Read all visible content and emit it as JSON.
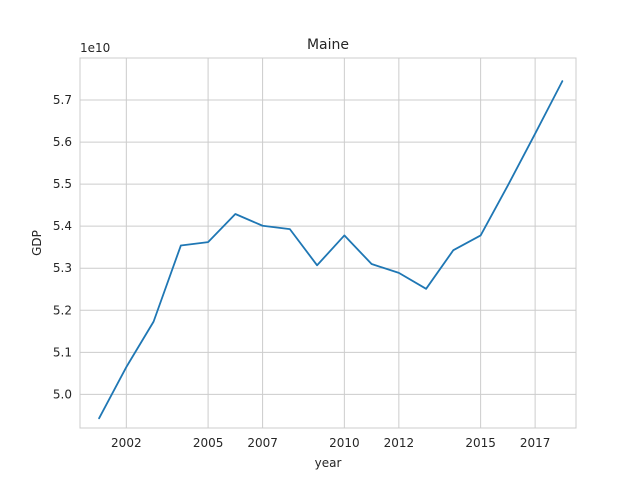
{
  "chart_data": {
    "type": "line",
    "title": "Maine",
    "xlabel": "year",
    "ylabel": "GDP",
    "y_offset_label": "1e10",
    "grid": true,
    "xlim": [
      2000.3,
      2018.5
    ],
    "ylim": [
      4.92,
      5.8
    ],
    "x_ticks": [
      2002,
      2005,
      2007,
      2010,
      2012,
      2015,
      2017
    ],
    "y_ticks": [
      5.0,
      5.1,
      5.2,
      5.3,
      5.4,
      5.5,
      5.6,
      5.7
    ],
    "y_tick_labels": [
      "5.0",
      "5.1",
      "5.2",
      "5.3",
      "5.4",
      "5.5",
      "5.6",
      "5.7"
    ],
    "series": [
      {
        "color": "#1f77b4",
        "x": [
          2001,
          2002,
          2003,
          2004,
          2005,
          2006,
          2007,
          2008,
          2009,
          2010,
          2011,
          2012,
          2013,
          2014,
          2015,
          2016,
          2017,
          2018
        ],
        "y": [
          4.943,
          5.065,
          5.173,
          5.354,
          5.362,
          5.429,
          5.401,
          5.393,
          5.307,
          5.378,
          5.31,
          5.289,
          5.251,
          5.343,
          5.378,
          5.497,
          5.62,
          5.745
        ]
      }
    ]
  }
}
